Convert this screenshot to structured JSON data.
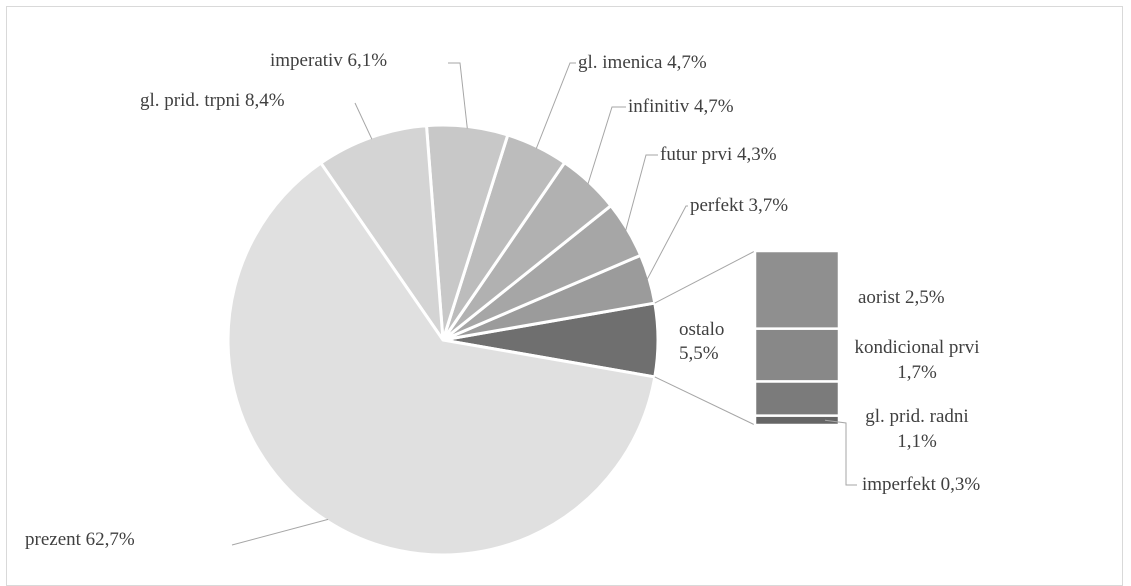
{
  "chart_data": {
    "type": "bar-of-pie",
    "pie": [
      {
        "label": "prezent",
        "display": "prezent  62,7%",
        "value": 62.7,
        "color": "#e0e0e0"
      },
      {
        "label": "gl. prid. trpni",
        "display": "gl. prid. trpni 8,4%",
        "value": 8.4,
        "color": "#d4d4d4"
      },
      {
        "label": "imperativ",
        "display": "imperativ 6,1%",
        "value": 6.1,
        "color": "#c8c8c8"
      },
      {
        "label": "gl. imenica",
        "display": "gl. imenica 4,7%",
        "value": 4.7,
        "color": "#bcbcbc"
      },
      {
        "label": "infinitiv",
        "display": "infinitiv 4,7%",
        "value": 4.7,
        "color": "#b1b1b1"
      },
      {
        "label": "futur prvi",
        "display": "futur prvi 4,3%",
        "value": 4.3,
        "color": "#a6a6a6"
      },
      {
        "label": "perfekt",
        "display": "perfekt 3,7%",
        "value": 3.7,
        "color": "#9b9b9b"
      },
      {
        "label": "ostalo",
        "display_lines": [
          "ostalo",
          "5,5%"
        ],
        "value": 5.5,
        "color": "#6f6f6f"
      }
    ],
    "bar": [
      {
        "label": "aorist",
        "display_lines": [
          "aorist  2,5%"
        ],
        "value": 2.5,
        "color": "#8f8f8f"
      },
      {
        "label": "kondicional prvi",
        "display_lines": [
          "kondicional prvi",
          "1,7%"
        ],
        "value": 1.7,
        "color": "#888888"
      },
      {
        "label": "gl. prid. radni",
        "display_lines": [
          "gl. prid. radni",
          "1,1%"
        ],
        "value": 1.1,
        "color": "#7b7b7b"
      },
      {
        "label": "imperfekt",
        "display_lines": [
          "imperfekt 0,3%"
        ],
        "value": 0.3,
        "color": "#666666"
      }
    ],
    "units": "%"
  }
}
